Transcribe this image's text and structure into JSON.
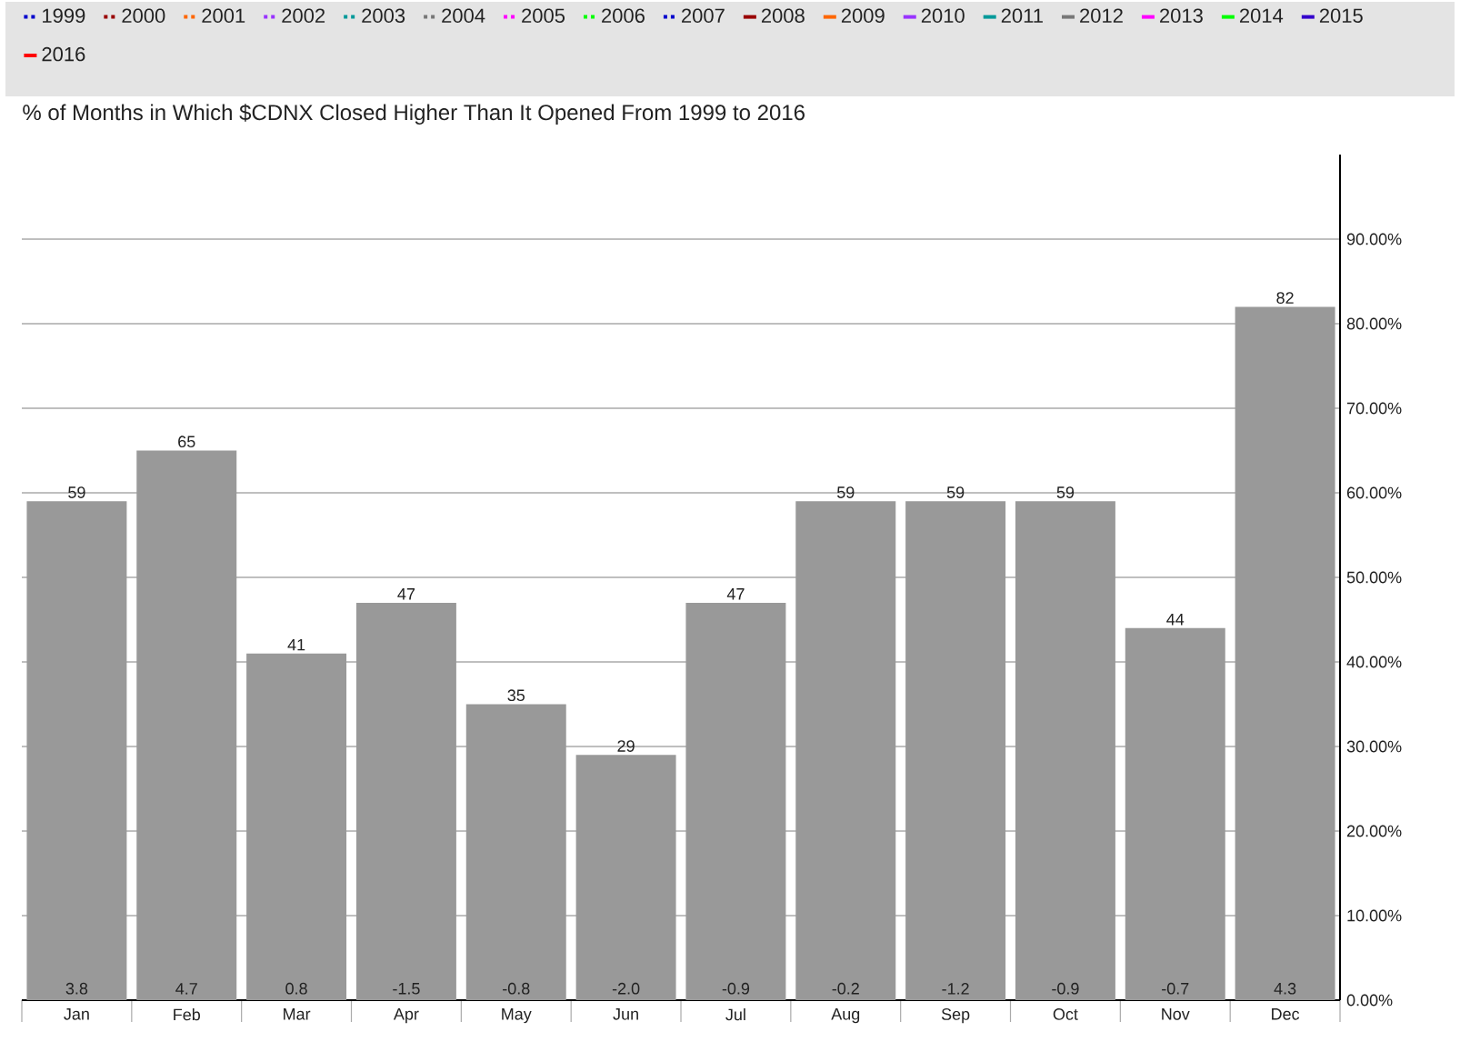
{
  "chart_data": {
    "type": "bar",
    "title": "% of Months in Which $CDNX Closed Higher Than It Opened From 1999 to 2016",
    "categories": [
      "Jan",
      "Feb",
      "Mar",
      "Apr",
      "May",
      "Jun",
      "Jul",
      "Aug",
      "Sep",
      "Oct",
      "Nov",
      "Dec"
    ],
    "series": [
      {
        "color": "#999999",
        "values": [
          59,
          65,
          41,
          47,
          35,
          29,
          47,
          59,
          59,
          59,
          44,
          82
        ]
      },
      {
        "name": "1999",
        "type": "line",
        "color": "#0000cc",
        "line_style": "dotted",
        "values": [
          null,
          null,
          null,
          null,
          null,
          null,
          null,
          null,
          null,
          null,
          null,
          null
        ]
      },
      {
        "name": "2000",
        "type": "line",
        "color": "#990000",
        "line_style": "dotted",
        "values": [
          null,
          null,
          null,
          null,
          null,
          null,
          null,
          null,
          null,
          null,
          null,
          null
        ]
      },
      {
        "name": "2001",
        "type": "line",
        "color": "#ff6600",
        "line_style": "dotted",
        "values": [
          null,
          null,
          null,
          null,
          null,
          null,
          null,
          null,
          null,
          null,
          null,
          null
        ]
      },
      {
        "name": "2002",
        "type": "line",
        "color": "#9933ff",
        "line_style": "dotted",
        "values": [
          null,
          null,
          null,
          null,
          null,
          null,
          null,
          null,
          null,
          null,
          null,
          null
        ]
      },
      {
        "name": "2003",
        "type": "line",
        "color": "#009999",
        "line_style": "dotted",
        "values": [
          null,
          null,
          null,
          null,
          null,
          null,
          null,
          null,
          null,
          null,
          null,
          null
        ]
      },
      {
        "name": "2004",
        "type": "line",
        "color": "#777777",
        "line_style": "dotted",
        "values": [
          null,
          null,
          null,
          null,
          null,
          null,
          null,
          null,
          null,
          null,
          null,
          null
        ]
      },
      {
        "name": "2005",
        "type": "line",
        "color": "#ff00ff",
        "line_style": "dotted",
        "values": [
          null,
          null,
          null,
          null,
          null,
          null,
          null,
          null,
          null,
          null,
          null,
          null
        ]
      },
      {
        "name": "2006",
        "type": "line",
        "color": "#00ff00",
        "line_style": "dotted",
        "values": [
          null,
          null,
          null,
          null,
          null,
          null,
          null,
          null,
          null,
          null,
          null,
          null
        ]
      },
      {
        "name": "2007",
        "type": "line",
        "color": "#0000cc",
        "line_style": "dotted",
        "values": [
          null,
          null,
          null,
          null,
          null,
          null,
          null,
          null,
          null,
          null,
          null,
          null
        ]
      },
      {
        "name": "2008",
        "type": "line",
        "color": "#990000",
        "line_style": "solid",
        "values": [
          null,
          null,
          null,
          null,
          null,
          null,
          null,
          null,
          null,
          null,
          null,
          null
        ]
      },
      {
        "name": "2009",
        "type": "line",
        "color": "#ff6600",
        "line_style": "solid",
        "values": [
          null,
          null,
          null,
          null,
          null,
          null,
          null,
          null,
          null,
          null,
          null,
          null
        ]
      },
      {
        "name": "2010",
        "type": "line",
        "color": "#9933ff",
        "line_style": "solid",
        "values": [
          null,
          null,
          null,
          null,
          null,
          null,
          null,
          null,
          null,
          null,
          null,
          null
        ]
      },
      {
        "name": "2011",
        "type": "line",
        "color": "#009999",
        "line_style": "solid",
        "values": [
          null,
          null,
          null,
          null,
          null,
          null,
          null,
          null,
          null,
          null,
          null,
          null
        ]
      },
      {
        "name": "2012",
        "type": "line",
        "color": "#777777",
        "line_style": "solid",
        "values": [
          null,
          null,
          null,
          null,
          null,
          null,
          null,
          null,
          null,
          null,
          null,
          null
        ]
      },
      {
        "name": "2013",
        "type": "line",
        "color": "#ff00ff",
        "line_style": "solid",
        "values": [
          null,
          null,
          null,
          null,
          null,
          null,
          null,
          null,
          null,
          null,
          null,
          null
        ]
      },
      {
        "name": "2014",
        "type": "line",
        "color": "#00ff00",
        "line_style": "solid",
        "values": [
          null,
          null,
          null,
          null,
          null,
          null,
          null,
          null,
          null,
          null,
          null,
          null
        ]
      },
      {
        "name": "2015",
        "type": "line",
        "color": "#3300cc",
        "line_style": "solid",
        "values": [
          null,
          null,
          null,
          null,
          null,
          null,
          null,
          null,
          null,
          null,
          null,
          null
        ]
      },
      {
        "name": "2016",
        "type": "line",
        "color": "#ff0000",
        "line_style": "solid",
        "values": [
          null,
          null,
          null,
          null,
          null,
          null,
          null,
          null,
          null,
          null,
          null,
          null
        ]
      }
    ],
    "ylim": [
      0,
      100
    ],
    "yticks": [
      {
        "value": 0,
        "label": "0.00%"
      },
      {
        "value": 10,
        "label": "10.00%"
      },
      {
        "value": 20,
        "label": "20.00%"
      },
      {
        "value": 30,
        "label": "30.00%"
      },
      {
        "value": 40,
        "label": "40.00%"
      },
      {
        "value": 50,
        "label": "50.00%"
      },
      {
        "value": 60,
        "label": "60.00%"
      },
      {
        "value": 70,
        "label": "70.00%"
      },
      {
        "value": 80,
        "label": "80.00%"
      },
      {
        "value": 90,
        "label": "90.00%"
      }
    ],
    "grid": "y",
    "legend": "top",
    "data_labels": true,
    "annotations": [
      {
        "text": "3.8",
        "x": "Jan",
        "y": 0
      },
      {
        "text": "4.7",
        "x": "Feb",
        "y": 0
      },
      {
        "text": "0.8",
        "x": "Mar",
        "y": 0
      },
      {
        "text": "-1.5",
        "x": "Apr",
        "y": 0
      },
      {
        "text": "-0.8",
        "x": "May",
        "y": 0
      },
      {
        "text": "-2.0",
        "x": "Jun",
        "y": 0
      },
      {
        "text": "-0.9",
        "x": "Jul",
        "y": 0
      },
      {
        "text": "-0.2",
        "x": "Aug",
        "y": 0
      },
      {
        "text": "-1.2",
        "x": "Sep",
        "y": 0
      },
      {
        "text": "-0.9",
        "x": "Oct",
        "y": 0
      },
      {
        "text": "-0.7",
        "x": "Nov",
        "y": 0
      },
      {
        "text": "4.3",
        "x": "Dec",
        "y": 0
      }
    ]
  }
}
